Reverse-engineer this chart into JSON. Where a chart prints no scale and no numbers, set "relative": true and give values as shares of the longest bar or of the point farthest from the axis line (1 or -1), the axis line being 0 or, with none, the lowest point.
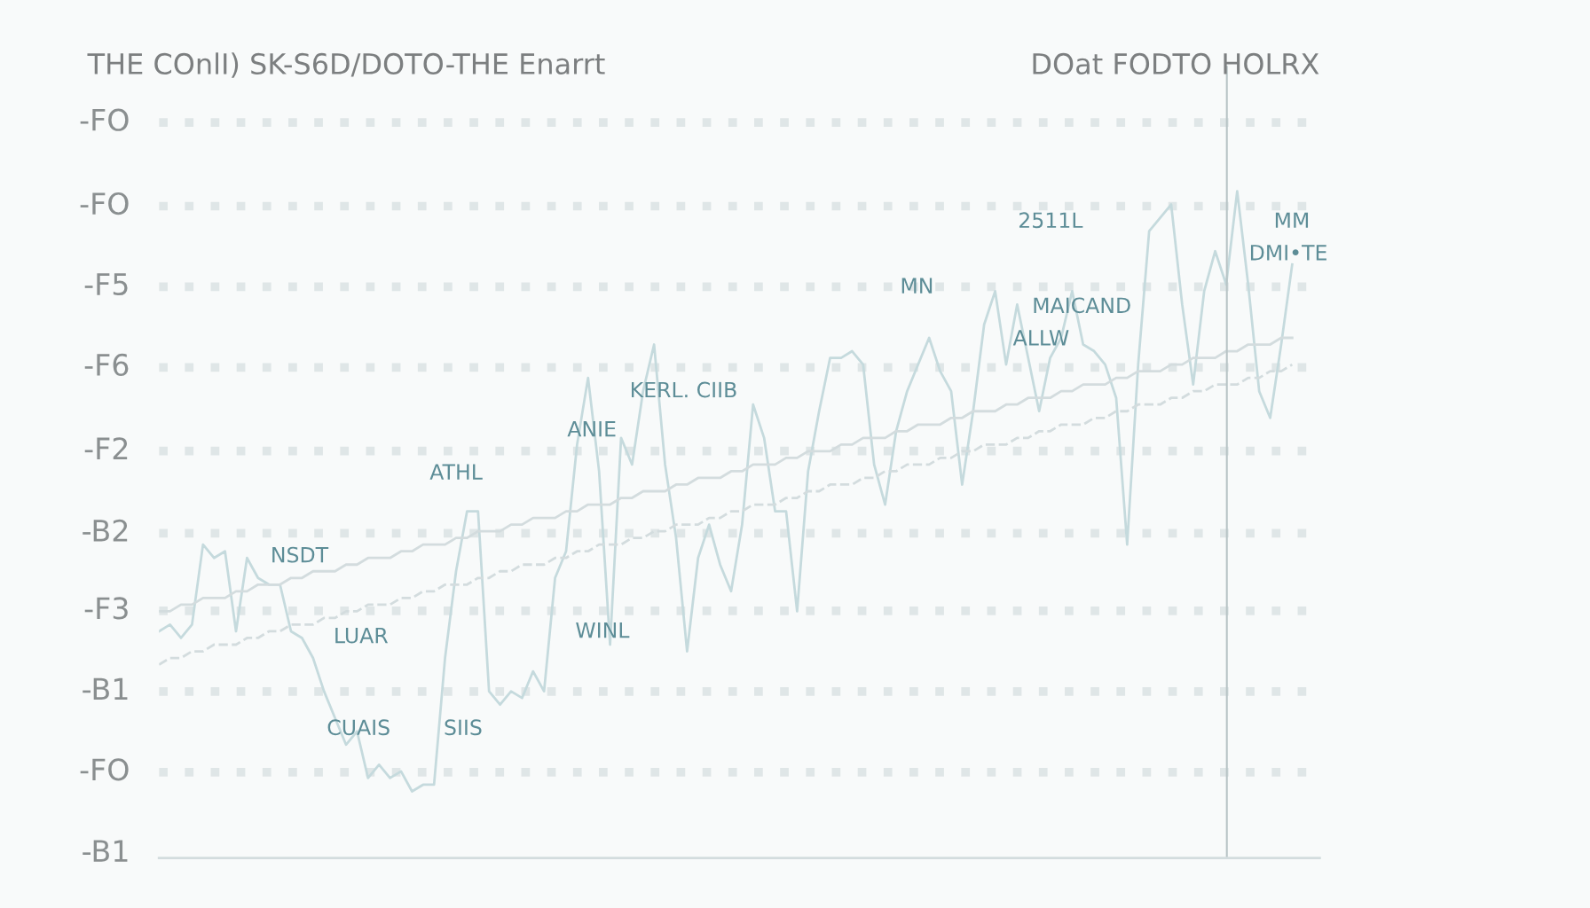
{
  "chart_data": {
    "type": "line",
    "title": "THE COnlI) SK-S6D/DOTO-THE Enarrt",
    "subtitle": "DOat FODTO HOLRX",
    "relative": true,
    "grid": "y",
    "marker": "none",
    "categories": [
      null,
      null,
      null,
      null,
      null,
      null,
      null,
      null,
      null,
      null,
      null,
      null,
      null,
      null,
      null,
      null,
      null,
      null,
      null,
      null,
      null,
      null,
      null,
      null,
      null,
      null,
      null,
      null,
      null,
      null,
      null,
      null,
      null,
      null,
      null,
      null,
      null,
      null,
      null,
      null,
      null,
      null,
      null,
      null,
      null,
      null,
      null,
      null,
      null,
      null,
      null,
      null,
      null,
      null,
      null,
      null,
      null,
      null,
      null,
      null,
      null,
      null,
      null,
      null,
      null,
      null,
      null,
      null,
      null,
      null,
      null,
      null,
      null,
      null,
      null,
      null,
      null,
      null,
      null,
      null,
      null,
      null,
      null,
      null,
      null,
      null,
      null,
      null,
      null,
      null,
      null,
      null,
      null,
      null,
      null,
      null,
      null,
      null,
      null,
      null,
      null,
      null,
      null,
      null
    ],
    "series": [
      {
        "color": "#c5dadd",
        "line_style": "solid",
        "values": [
          0.34,
          0.35,
          0.33,
          0.35,
          0.47,
          0.45,
          0.46,
          0.34,
          0.45,
          0.42,
          0.41,
          0.41,
          0.34,
          0.33,
          0.3,
          0.25,
          0.21,
          0.17,
          0.19,
          0.12,
          0.14,
          0.12,
          0.13,
          0.1,
          0.11,
          0.11,
          0.3,
          0.43,
          0.52,
          0.52,
          0.25,
          0.23,
          0.25,
          0.24,
          0.28,
          0.25,
          0.42,
          0.46,
          0.62,
          0.72,
          0.58,
          0.32,
          0.63,
          0.59,
          0.7,
          0.77,
          0.59,
          0.48,
          0.31,
          0.45,
          0.5,
          0.44,
          0.4,
          0.5,
          0.68,
          0.63,
          0.52,
          0.52,
          0.37,
          0.58,
          0.67,
          0.75,
          0.75,
          0.76,
          0.74,
          0.59,
          0.53,
          0.64,
          0.7,
          0.74,
          0.78,
          0.73,
          0.7,
          0.56,
          0.67,
          0.8,
          0.85,
          0.74,
          0.83,
          0.75,
          0.67,
          0.75,
          0.78,
          0.85,
          0.77,
          0.76,
          0.74,
          0.69,
          0.47,
          0.74,
          0.94,
          0.96,
          0.98,
          0.83,
          0.71,
          0.85,
          0.91,
          0.86,
          1,
          0.86,
          0.7,
          0.66,
          0.77,
          0.89
        ]
      },
      {
        "color": "#d3dcde",
        "line_style": "solid",
        "values": [
          0.37,
          0.37,
          0.38,
          0.38,
          0.39,
          0.39,
          0.39,
          0.4,
          0.4,
          0.41,
          0.41,
          0.41,
          0.42,
          0.42,
          0.43,
          0.43,
          0.43,
          0.44,
          0.44,
          0.45,
          0.45,
          0.45,
          0.46,
          0.46,
          0.47,
          0.47,
          0.47,
          0.48,
          0.48,
          0.49,
          0.49,
          0.49,
          0.5,
          0.5,
          0.51,
          0.51,
          0.51,
          0.52,
          0.52,
          0.53,
          0.53,
          0.53,
          0.54,
          0.54,
          0.55,
          0.55,
          0.55,
          0.56,
          0.56,
          0.57,
          0.57,
          0.57,
          0.58,
          0.58,
          0.59,
          0.59,
          0.59,
          0.6,
          0.6,
          0.61,
          0.61,
          0.61,
          0.62,
          0.62,
          0.63,
          0.63,
          0.63,
          0.64,
          0.64,
          0.65,
          0.65,
          0.65,
          0.66,
          0.66,
          0.67,
          0.67,
          0.67,
          0.68,
          0.68,
          0.69,
          0.69,
          0.69,
          0.7,
          0.7,
          0.71,
          0.71,
          0.71,
          0.72,
          0.72,
          0.73,
          0.73,
          0.73,
          0.74,
          0.74,
          0.75,
          0.75,
          0.75,
          0.76,
          0.76,
          0.77,
          0.77,
          0.77,
          0.78,
          0.78
        ]
      },
      {
        "color": "#d3dcde",
        "line_style": "dashed",
        "values": [
          0.29,
          0.3,
          0.3,
          0.31,
          0.31,
          0.32,
          0.32,
          0.32,
          0.33,
          0.33,
          0.34,
          0.34,
          0.35,
          0.35,
          0.35,
          0.36,
          0.36,
          0.37,
          0.37,
          0.38,
          0.38,
          0.38,
          0.39,
          0.39,
          0.4,
          0.4,
          0.41,
          0.41,
          0.41,
          0.42,
          0.42,
          0.43,
          0.43,
          0.44,
          0.44,
          0.44,
          0.45,
          0.45,
          0.46,
          0.46,
          0.47,
          0.47,
          0.47,
          0.48,
          0.48,
          0.49,
          0.49,
          0.5,
          0.5,
          0.5,
          0.51,
          0.51,
          0.52,
          0.52,
          0.53,
          0.53,
          0.53,
          0.54,
          0.54,
          0.55,
          0.55,
          0.56,
          0.56,
          0.56,
          0.57,
          0.57,
          0.58,
          0.58,
          0.59,
          0.59,
          0.59,
          0.6,
          0.6,
          0.61,
          0.61,
          0.62,
          0.62,
          0.62,
          0.63,
          0.63,
          0.64,
          0.64,
          0.65,
          0.65,
          0.65,
          0.66,
          0.66,
          0.67,
          0.67,
          0.68,
          0.68,
          0.68,
          0.69,
          0.69,
          0.7,
          0.7,
          0.71,
          0.71,
          0.71,
          0.72,
          0.72,
          0.73,
          0.73,
          0.74
        ]
      }
    ],
    "annotations": [
      "-B1",
      "-FO",
      "-B1",
      "-F3",
      "-B2",
      "-F2",
      "-F6",
      "-F5",
      "-FO",
      "-FO",
      "NSDT",
      "LUAR",
      "CUAIS",
      "ATHL",
      "SIIS",
      "ANIE",
      "WINL",
      "KERL. CIIB",
      "MN",
      "2511L",
      "MAICAND",
      "ALLW",
      "MM",
      "DMI•TE"
    ]
  }
}
